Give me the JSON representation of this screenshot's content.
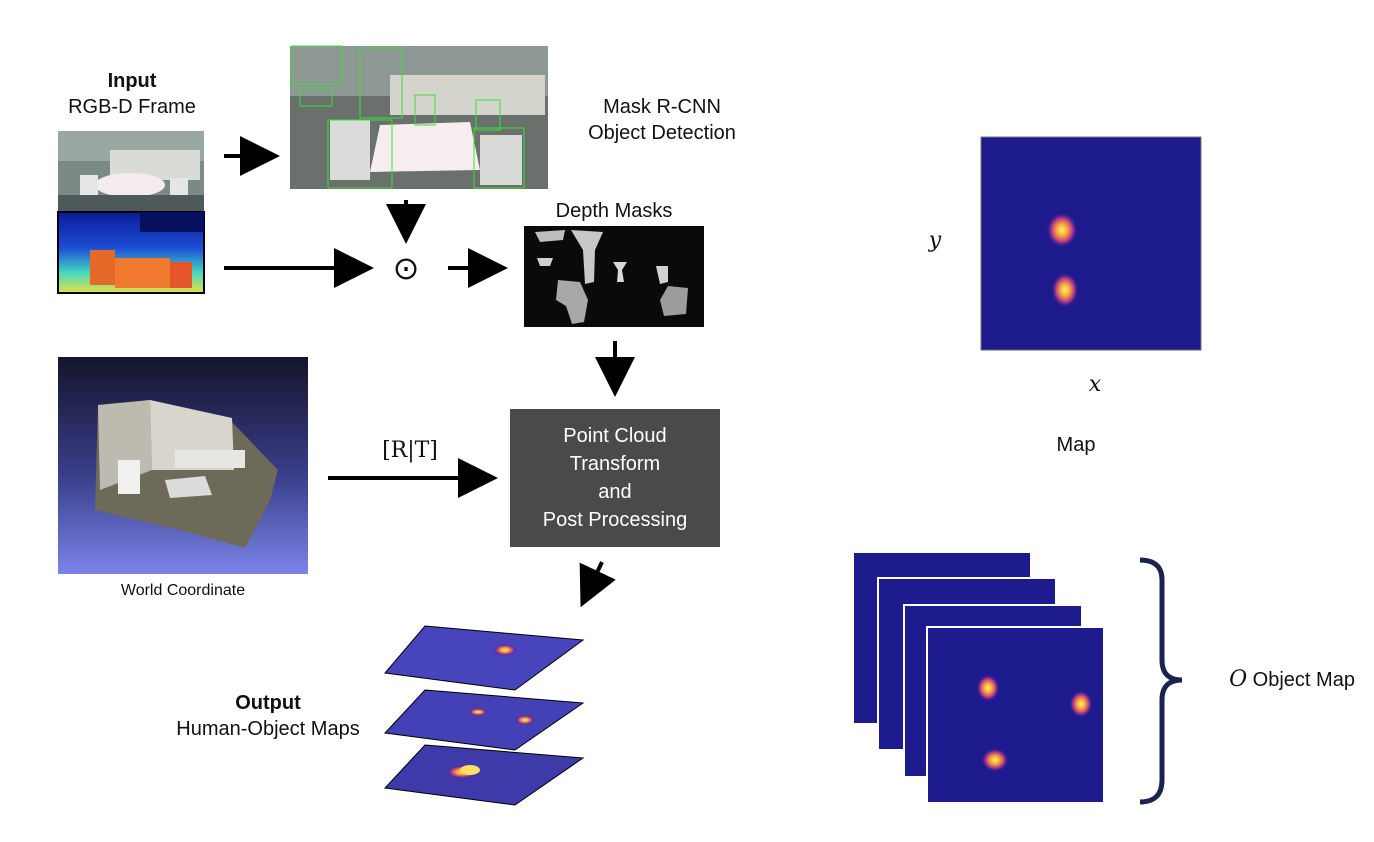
{
  "input": {
    "title": "Input",
    "subtitle": "RGB-D Frame"
  },
  "detection": {
    "line1": "Mask R-CNN",
    "line2": "Object Detection"
  },
  "depth_masks": {
    "label": "Depth Masks"
  },
  "operator": {
    "symbol": "⊙"
  },
  "transform_label": {
    "text": "[R|T]"
  },
  "process_box": {
    "line1": "Point Cloud",
    "line2": "Transform",
    "line3": "and",
    "line4": "Post Processing"
  },
  "world": {
    "label": "World Coordinate"
  },
  "output": {
    "title": "Output",
    "subtitle": "Human-Object Maps"
  },
  "map": {
    "y_label": "y",
    "x_label": "x",
    "caption": "Map"
  },
  "object_map": {
    "prefix": "O",
    "label": "Object Map"
  },
  "colors": {
    "map_bg": "#1c1a8c",
    "box_bg": "#4a4a4a",
    "brace": "#1a2250",
    "hot": "#ffd84a"
  }
}
